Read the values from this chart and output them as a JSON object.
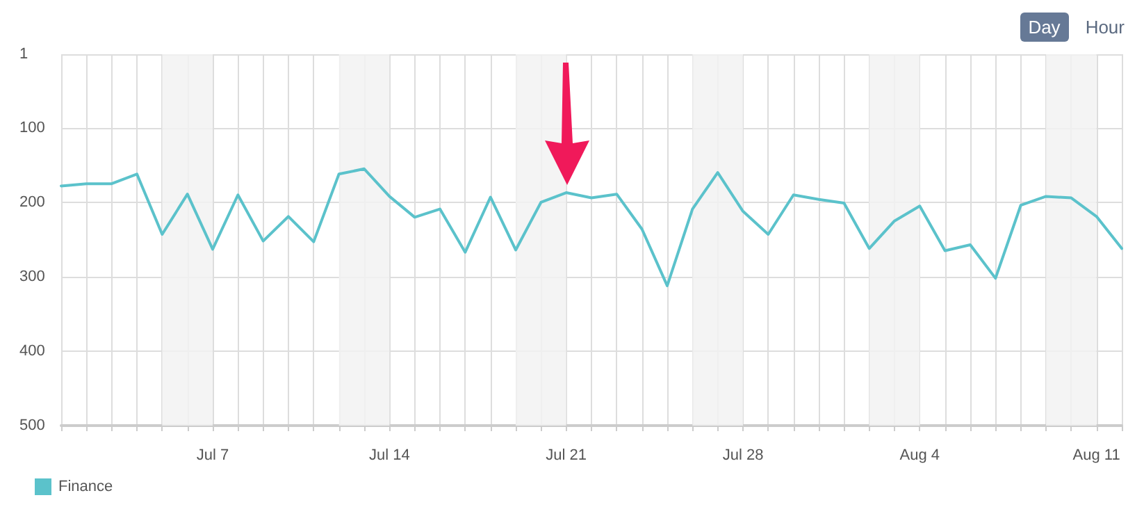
{
  "chart_data": {
    "type": "line",
    "annotations": [
      "Day",
      "Hour"
    ],
    "x": [
      "--07-01",
      "--07-02",
      "--07-03",
      "--07-04",
      "--07-05",
      "--07-06",
      "--07-07",
      "--07-08",
      "--07-09",
      "--07-10",
      "--07-11",
      "--07-12",
      "--07-13",
      "--07-14",
      "--07-15",
      "--07-16",
      "--07-17",
      "--07-18",
      "--07-19",
      "--07-20",
      "--07-21",
      "--07-22",
      "--07-23",
      "--07-24",
      "--07-25",
      "--07-26",
      "--07-27",
      "--07-28",
      "--07-29",
      "--07-30",
      "--07-31",
      "--08-01",
      "--08-02",
      "--08-03",
      "--08-04",
      "--08-05",
      "--08-06",
      "--08-07",
      "--08-08",
      "--08-09",
      "--08-10",
      "--08-11",
      "--08-12"
    ],
    "series": [
      {
        "name": "Finance",
        "color": "#5bc2cb",
        "values": [
          178,
          175,
          175,
          162,
          243,
          189,
          263,
          190,
          252,
          219,
          253,
          162,
          155,
          192,
          220,
          209,
          267,
          193,
          264,
          200,
          187,
          194,
          189,
          236,
          312,
          209,
          160,
          212,
          243,
          190,
          196,
          201,
          262,
          225,
          205,
          265,
          257,
          302,
          204,
          192,
          194,
          219,
          262
        ]
      }
    ],
    "xlim": [
      "--07-01",
      "--08-12"
    ],
    "xticks": [
      {
        "value": "--07-01",
        "label": null
      },
      {
        "value": "--07-02",
        "label": null
      },
      {
        "value": "--07-03",
        "label": null
      },
      {
        "value": "--07-04",
        "label": null
      },
      {
        "value": "--07-05",
        "label": null
      },
      {
        "value": "--07-06",
        "label": null
      },
      {
        "value": "--07-07",
        "label": "Jul 7"
      },
      {
        "value": "--07-08",
        "label": null
      },
      {
        "value": "--07-09",
        "label": null
      },
      {
        "value": "--07-10",
        "label": null
      },
      {
        "value": "--07-11",
        "label": null
      },
      {
        "value": "--07-12",
        "label": null
      },
      {
        "value": "--07-13",
        "label": null
      },
      {
        "value": "--07-14",
        "label": "Jul 14"
      },
      {
        "value": "--07-15",
        "label": null
      },
      {
        "value": "--07-16",
        "label": null
      },
      {
        "value": "--07-17",
        "label": null
      },
      {
        "value": "--07-18",
        "label": null
      },
      {
        "value": "--07-19",
        "label": null
      },
      {
        "value": "--07-20",
        "label": null
      },
      {
        "value": "--07-21",
        "label": "Jul 21"
      },
      {
        "value": "--07-22",
        "label": null
      },
      {
        "value": "--07-23",
        "label": null
      },
      {
        "value": "--07-24",
        "label": null
      },
      {
        "value": "--07-25",
        "label": null
      },
      {
        "value": "--07-26",
        "label": null
      },
      {
        "value": "--07-27",
        "label": null
      },
      {
        "value": "--07-28",
        "label": "Jul 28"
      },
      {
        "value": "--07-29",
        "label": null
      },
      {
        "value": "--07-30",
        "label": null
      },
      {
        "value": "--07-31",
        "label": null
      },
      {
        "value": "--08-01",
        "label": null
      },
      {
        "value": "--08-02",
        "label": null
      },
      {
        "value": "--08-03",
        "label": null
      },
      {
        "value": "--08-04",
        "label": "Aug 4"
      },
      {
        "value": "--08-05",
        "label": null
      },
      {
        "value": "--08-06",
        "label": null
      },
      {
        "value": "--08-07",
        "label": null
      },
      {
        "value": "--08-08",
        "label": null
      },
      {
        "value": "--08-09",
        "label": null
      },
      {
        "value": "--08-10",
        "label": null
      },
      {
        "value": "--08-11",
        "label": "Aug 11"
      },
      {
        "value": "--08-12",
        "label": null
      }
    ],
    "ylim": [
      500,
      1
    ],
    "yticks": [
      1,
      100,
      200,
      300,
      400,
      500
    ],
    "bands": [
      {
        "axis": "x",
        "from": "--07-05",
        "to": "--07-07",
        "color": "#f2f2f2"
      },
      {
        "axis": "x",
        "from": "--07-12",
        "to": "--07-14",
        "color": "#f2f2f2"
      },
      {
        "axis": "x",
        "from": "--07-19",
        "to": "--07-21",
        "color": "#f2f2f2"
      },
      {
        "axis": "x",
        "from": "--07-26",
        "to": "--07-28",
        "color": "#f2f2f2"
      },
      {
        "axis": "x",
        "from": "--08-02",
        "to": "--08-04",
        "color": "#f2f2f2"
      },
      {
        "axis": "x",
        "from": "--08-09",
        "to": "--08-11",
        "color": "#f2f2f2"
      }
    ],
    "grid": true,
    "legend": "bottom left",
    "marker": "none",
    "line_style": "solid"
  }
}
